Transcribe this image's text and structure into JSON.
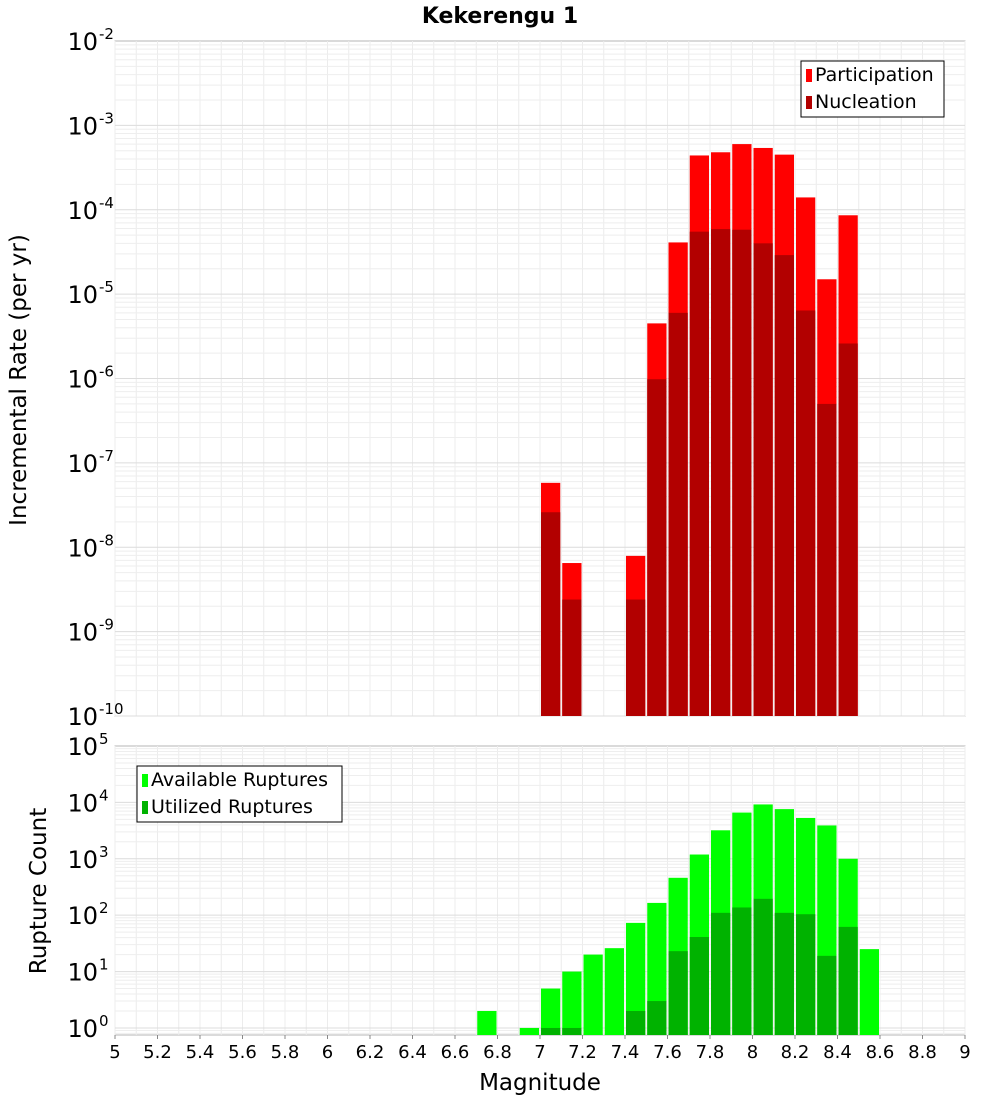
{
  "chart_data": [
    {
      "type": "bar",
      "title": "Kekerengu 1",
      "xlabel": "",
      "ylabel": "Incremental Rate (per yr)",
      "yscale": "log",
      "ylim": [
        1e-10,
        0.01
      ],
      "xlim": [
        5,
        9
      ],
      "bin_width": 0.1,
      "y_ticks": [
        {
          "base": "10",
          "exp": "-2"
        },
        {
          "base": "10",
          "exp": "-3"
        },
        {
          "base": "10",
          "exp": "-4"
        },
        {
          "base": "10",
          "exp": "-5"
        },
        {
          "base": "10",
          "exp": "-6"
        },
        {
          "base": "10",
          "exp": "-7"
        },
        {
          "base": "10",
          "exp": "-8"
        },
        {
          "base": "10",
          "exp": "-9"
        },
        {
          "base": "10",
          "exp": "-10"
        }
      ],
      "legend": {
        "position": "top-right"
      },
      "grid": true,
      "series": [
        {
          "name": "Participation",
          "color": "#ff0000",
          "points": [
            {
              "x": 7.05,
              "y": 5.8e-08
            },
            {
              "x": 7.15,
              "y": 6.5e-09
            },
            {
              "x": 7.45,
              "y": 7.9e-09
            },
            {
              "x": 7.55,
              "y": 4.5e-06
            },
            {
              "x": 7.65,
              "y": 4.1e-05
            },
            {
              "x": 7.75,
              "y": 0.00044
            },
            {
              "x": 7.85,
              "y": 0.00048
            },
            {
              "x": 7.95,
              "y": 0.0006
            },
            {
              "x": 8.05,
              "y": 0.00054
            },
            {
              "x": 8.15,
              "y": 0.00045
            },
            {
              "x": 8.25,
              "y": 0.00014
            },
            {
              "x": 8.35,
              "y": 1.5e-05
            },
            {
              "x": 8.45,
              "y": 8.6e-05
            }
          ]
        },
        {
          "name": "Nucleation",
          "color": "#b20000",
          "points": [
            {
              "x": 7.05,
              "y": 2.6e-08
            },
            {
              "x": 7.15,
              "y": 2.4e-09
            },
            {
              "x": 7.45,
              "y": 2.4e-09
            },
            {
              "x": 7.55,
              "y": 9.8e-07
            },
            {
              "x": 7.65,
              "y": 6e-06
            },
            {
              "x": 7.75,
              "y": 5.5e-05
            },
            {
              "x": 7.85,
              "y": 5.9e-05
            },
            {
              "x": 7.95,
              "y": 5.8e-05
            },
            {
              "x": 8.05,
              "y": 4e-05
            },
            {
              "x": 8.15,
              "y": 2.9e-05
            },
            {
              "x": 8.25,
              "y": 6.4e-06
            },
            {
              "x": 8.35,
              "y": 5e-07
            },
            {
              "x": 8.45,
              "y": 2.6e-06
            }
          ]
        }
      ]
    },
    {
      "type": "bar",
      "title": "",
      "xlabel": "Magnitude",
      "ylabel": "Rupture Count",
      "yscale": "log",
      "ylim": [
        0.75,
        100000.0
      ],
      "xlim": [
        5,
        9
      ],
      "bin_width": 0.1,
      "x_ticks": [
        "5",
        "5.2",
        "5.4",
        "5.6",
        "5.8",
        "6",
        "6.2",
        "6.4",
        "6.6",
        "6.8",
        "7",
        "7.2",
        "7.4",
        "7.6",
        "7.8",
        "8",
        "8.2",
        "8.4",
        "8.6",
        "8.8",
        "9"
      ],
      "y_ticks": [
        {
          "base": "10",
          "exp": "5"
        },
        {
          "base": "10",
          "exp": "4"
        },
        {
          "base": "10",
          "exp": "3"
        },
        {
          "base": "10",
          "exp": "2"
        },
        {
          "base": "10",
          "exp": "1"
        },
        {
          "base": "10",
          "exp": "0"
        }
      ],
      "legend": {
        "position": "top-left"
      },
      "grid": true,
      "series": [
        {
          "name": "Available Ruptures",
          "color": "#00ff00",
          "points": [
            {
              "x": 6.75,
              "y": 2
            },
            {
              "x": 6.95,
              "y": 1
            },
            {
              "x": 7.05,
              "y": 5
            },
            {
              "x": 7.15,
              "y": 10
            },
            {
              "x": 7.25,
              "y": 20
            },
            {
              "x": 7.35,
              "y": 26
            },
            {
              "x": 7.45,
              "y": 73
            },
            {
              "x": 7.55,
              "y": 165
            },
            {
              "x": 7.65,
              "y": 460
            },
            {
              "x": 7.75,
              "y": 1190
            },
            {
              "x": 7.85,
              "y": 3200
            },
            {
              "x": 7.95,
              "y": 6600
            },
            {
              "x": 8.05,
              "y": 9200
            },
            {
              "x": 8.15,
              "y": 7600
            },
            {
              "x": 8.25,
              "y": 5300
            },
            {
              "x": 8.35,
              "y": 3900
            },
            {
              "x": 8.45,
              "y": 1000
            },
            {
              "x": 8.55,
              "y": 25
            }
          ]
        },
        {
          "name": "Utilized Ruptures",
          "color": "#00b200",
          "points": [
            {
              "x": 7.05,
              "y": 1
            },
            {
              "x": 7.15,
              "y": 1
            },
            {
              "x": 7.45,
              "y": 2
            },
            {
              "x": 7.55,
              "y": 3
            },
            {
              "x": 7.65,
              "y": 23
            },
            {
              "x": 7.75,
              "y": 41
            },
            {
              "x": 7.85,
              "y": 110
            },
            {
              "x": 7.95,
              "y": 137
            },
            {
              "x": 8.05,
              "y": 195
            },
            {
              "x": 8.15,
              "y": 110
            },
            {
              "x": 8.25,
              "y": 104
            },
            {
              "x": 8.35,
              "y": 19
            },
            {
              "x": 8.45,
              "y": 62
            }
          ]
        }
      ]
    }
  ]
}
